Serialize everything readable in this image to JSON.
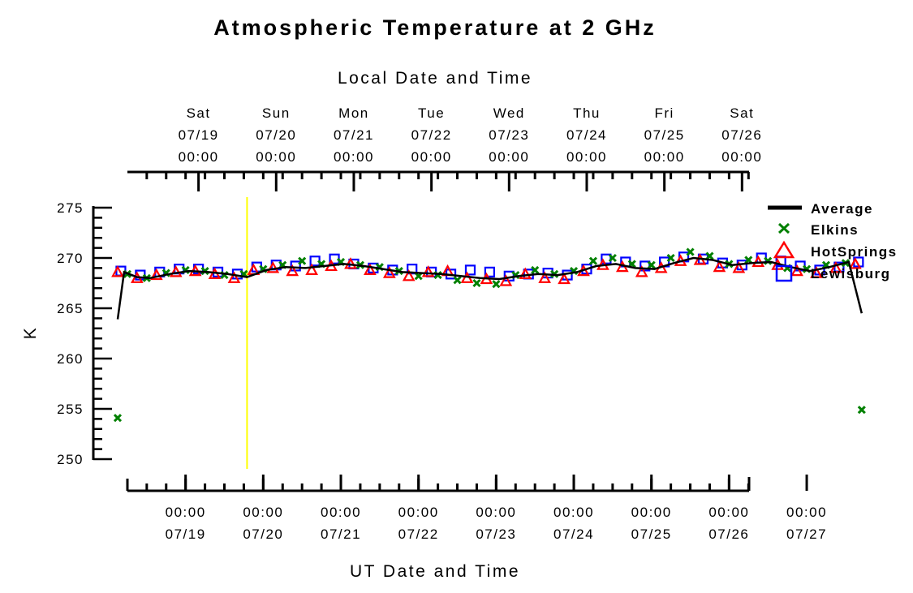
{
  "chart_data": {
    "type": "scatter",
    "title": "Atmospheric Temperature at 2 GHz",
    "ylabel": "K",
    "xlabel_bottom": "UT Date and Time",
    "xlabel_top": "Local Date and Time",
    "ylim": [
      250,
      275
    ],
    "y_ticks": [
      "250",
      "255",
      "260",
      "265",
      "270",
      "275"
    ],
    "xlim": [
      "2025-07-18T00:00",
      "2025-07-27T04:00"
    ],
    "bottom_ticks": [
      {
        "time": "00:00",
        "date": "07/19"
      },
      {
        "time": "00:00",
        "date": "07/20"
      },
      {
        "time": "00:00",
        "date": "07/21"
      },
      {
        "time": "00:00",
        "date": "07/22"
      },
      {
        "time": "00:00",
        "date": "07/23"
      },
      {
        "time": "00:00",
        "date": "07/24"
      },
      {
        "time": "00:00",
        "date": "07/25"
      },
      {
        "time": "00:00",
        "date": "07/26"
      },
      {
        "time": "00:00",
        "date": "07/27"
      }
    ],
    "top_ticks": [
      {
        "day": "Sat",
        "date": "07/19",
        "time": "00:00"
      },
      {
        "day": "Sun",
        "date": "07/20",
        "time": "00:00"
      },
      {
        "day": "Mon",
        "date": "07/21",
        "time": "00:00"
      },
      {
        "day": "Tue",
        "date": "07/22",
        "time": "00:00"
      },
      {
        "day": "Wed",
        "date": "07/23",
        "time": "00:00"
      },
      {
        "day": "Thu",
        "date": "07/24",
        "time": "00:00"
      },
      {
        "day": "Fri",
        "date": "07/25",
        "time": "00:00"
      },
      {
        "day": "Sat",
        "date": "07/26",
        "time": "00:00"
      }
    ],
    "marker_line": {
      "time": "2025-07-19T19:00",
      "color": "#ffff00"
    },
    "series": [
      {
        "name": "Average",
        "style": "line",
        "color": "#000000",
        "points": [
          [
            "2025-07-18T03:00",
            263.9
          ],
          [
            "2025-07-18T05:00",
            268.6
          ],
          [
            "2025-07-18T09:00",
            268.1
          ],
          [
            "2025-07-18T13:00",
            268.0
          ],
          [
            "2025-07-18T19:00",
            268.4
          ],
          [
            "2025-07-19T01:00",
            268.7
          ],
          [
            "2025-07-19T07:00",
            268.6
          ],
          [
            "2025-07-19T13:00",
            268.4
          ],
          [
            "2025-07-19T19:00",
            268.1
          ],
          [
            "2025-07-20T01:00",
            268.8
          ],
          [
            "2025-07-20T07:00",
            269.1
          ],
          [
            "2025-07-20T13:00",
            269.0
          ],
          [
            "2025-07-20T19:00",
            269.2
          ],
          [
            "2025-07-21T01:00",
            269.4
          ],
          [
            "2025-07-21T07:00",
            269.2
          ],
          [
            "2025-07-21T13:00",
            268.9
          ],
          [
            "2025-07-21T19:00",
            268.6
          ],
          [
            "2025-07-22T01:00",
            268.5
          ],
          [
            "2025-07-22T07:00",
            268.4
          ],
          [
            "2025-07-22T13:00",
            268.2
          ],
          [
            "2025-07-22T19:00",
            268.0
          ],
          [
            "2025-07-23T01:00",
            267.9
          ],
          [
            "2025-07-23T07:00",
            268.2
          ],
          [
            "2025-07-23T13:00",
            268.4
          ],
          [
            "2025-07-23T19:00",
            268.3
          ],
          [
            "2025-07-24T01:00",
            268.6
          ],
          [
            "2025-07-24T07:00",
            269.2
          ],
          [
            "2025-07-24T13:00",
            269.4
          ],
          [
            "2025-07-24T19:00",
            269.0
          ],
          [
            "2025-07-25T01:00",
            268.9
          ],
          [
            "2025-07-25T07:00",
            269.5
          ],
          [
            "2025-07-25T13:00",
            270.0
          ],
          [
            "2025-07-25T19:00",
            269.8
          ],
          [
            "2025-07-26T01:00",
            269.3
          ],
          [
            "2025-07-26T07:00",
            269.5
          ],
          [
            "2025-07-26T13:00",
            269.6
          ],
          [
            "2025-07-26T19:00",
            269.1
          ],
          [
            "2025-07-27T01:00",
            268.7
          ],
          [
            "2025-07-27T07:00",
            269.1
          ],
          [
            "2025-07-27T13:00",
            269.6
          ],
          [
            "2025-07-27T17:00",
            264.5
          ]
        ]
      },
      {
        "name": "Elkins",
        "style": "x",
        "color": "#008000",
        "points": [
          [
            "2025-07-18T03:00",
            254.1
          ],
          [
            "2025-07-18T06:00",
            268.4
          ],
          [
            "2025-07-18T12:00",
            268.0
          ],
          [
            "2025-07-18T18:00",
            268.5
          ],
          [
            "2025-07-19T00:00",
            268.8
          ],
          [
            "2025-07-19T06:00",
            268.7
          ],
          [
            "2025-07-19T12:00",
            268.3
          ],
          [
            "2025-07-19T18:00",
            268.4
          ],
          [
            "2025-07-20T00:00",
            268.9
          ],
          [
            "2025-07-20T06:00",
            269.3
          ],
          [
            "2025-07-20T12:00",
            269.7
          ],
          [
            "2025-07-20T18:00",
            269.4
          ],
          [
            "2025-07-21T00:00",
            269.6
          ],
          [
            "2025-07-21T06:00",
            269.3
          ],
          [
            "2025-07-21T12:00",
            269.1
          ],
          [
            "2025-07-21T18:00",
            268.7
          ],
          [
            "2025-07-22T00:00",
            268.2
          ],
          [
            "2025-07-22T06:00",
            268.3
          ],
          [
            "2025-07-22T12:00",
            267.8
          ],
          [
            "2025-07-22T18:00",
            267.5
          ],
          [
            "2025-07-23T00:00",
            267.4
          ],
          [
            "2025-07-23T06:00",
            268.3
          ],
          [
            "2025-07-23T12:00",
            268.8
          ],
          [
            "2025-07-23T18:00",
            268.4
          ],
          [
            "2025-07-24T00:00",
            268.7
          ],
          [
            "2025-07-24T06:00",
            269.7
          ],
          [
            "2025-07-24T12:00",
            270.0
          ],
          [
            "2025-07-24T18:00",
            269.4
          ],
          [
            "2025-07-25T00:00",
            269.3
          ],
          [
            "2025-07-25T06:00",
            270.0
          ],
          [
            "2025-07-25T12:00",
            270.6
          ],
          [
            "2025-07-25T18:00",
            270.2
          ],
          [
            "2025-07-26T00:00",
            269.4
          ],
          [
            "2025-07-26T06:00",
            269.8
          ],
          [
            "2025-07-26T12:00",
            269.7
          ],
          [
            "2025-07-26T18:00",
            269.0
          ],
          [
            "2025-07-27T00:00",
            268.9
          ],
          [
            "2025-07-27T06:00",
            269.3
          ],
          [
            "2025-07-27T12:00",
            269.5
          ],
          [
            "2025-07-27T17:00",
            254.9
          ]
        ]
      },
      {
        "name": "HotSprings",
        "style": "triangle",
        "color": "#ff0000",
        "points": [
          [
            "2025-07-18T03:00",
            268.6
          ],
          [
            "2025-07-18T09:00",
            268.0
          ],
          [
            "2025-07-18T15:00",
            268.3
          ],
          [
            "2025-07-18T21:00",
            268.6
          ],
          [
            "2025-07-19T03:00",
            268.7
          ],
          [
            "2025-07-19T09:00",
            268.4
          ],
          [
            "2025-07-19T15:00",
            268.0
          ],
          [
            "2025-07-19T21:00",
            268.8
          ],
          [
            "2025-07-20T03:00",
            269.0
          ],
          [
            "2025-07-20T09:00",
            268.7
          ],
          [
            "2025-07-20T15:00",
            268.8
          ],
          [
            "2025-07-20T21:00",
            269.2
          ],
          [
            "2025-07-21T03:00",
            269.4
          ],
          [
            "2025-07-21T09:00",
            268.8
          ],
          [
            "2025-07-21T15:00",
            268.5
          ],
          [
            "2025-07-21T21:00",
            268.2
          ],
          [
            "2025-07-22T03:00",
            268.6
          ],
          [
            "2025-07-22T09:00",
            268.7
          ],
          [
            "2025-07-22T15:00",
            268.0
          ],
          [
            "2025-07-22T21:00",
            267.9
          ],
          [
            "2025-07-23T03:00",
            267.7
          ],
          [
            "2025-07-23T09:00",
            268.4
          ],
          [
            "2025-07-23T15:00",
            268.0
          ],
          [
            "2025-07-23T21:00",
            267.9
          ],
          [
            "2025-07-24T03:00",
            268.7
          ],
          [
            "2025-07-24T09:00",
            269.3
          ],
          [
            "2025-07-24T15:00",
            269.1
          ],
          [
            "2025-07-24T21:00",
            268.6
          ],
          [
            "2025-07-25T03:00",
            269.0
          ],
          [
            "2025-07-25T09:00",
            269.7
          ],
          [
            "2025-07-25T15:00",
            269.8
          ],
          [
            "2025-07-25T21:00",
            269.1
          ],
          [
            "2025-07-26T03:00",
            269.0
          ],
          [
            "2025-07-26T09:00",
            269.6
          ],
          [
            "2025-07-26T15:00",
            269.3
          ],
          [
            "2025-07-26T21:00",
            268.7
          ],
          [
            "2025-07-27T03:00",
            268.5
          ],
          [
            "2025-07-27T09:00",
            269.0
          ],
          [
            "2025-07-27T15:00",
            269.4
          ]
        ]
      },
      {
        "name": "Lewisburg",
        "style": "square",
        "color": "#0000ff",
        "points": [
          [
            "2025-07-18T04:00",
            268.7
          ],
          [
            "2025-07-18T10:00",
            268.3
          ],
          [
            "2025-07-18T16:00",
            268.6
          ],
          [
            "2025-07-18T22:00",
            268.9
          ],
          [
            "2025-07-19T04:00",
            268.9
          ],
          [
            "2025-07-19T10:00",
            268.6
          ],
          [
            "2025-07-19T16:00",
            268.4
          ],
          [
            "2025-07-19T22:00",
            269.1
          ],
          [
            "2025-07-20T04:00",
            269.3
          ],
          [
            "2025-07-20T10:00",
            269.2
          ],
          [
            "2025-07-20T16:00",
            269.7
          ],
          [
            "2025-07-20T22:00",
            269.9
          ],
          [
            "2025-07-21T04:00",
            269.4
          ],
          [
            "2025-07-21T10:00",
            269.0
          ],
          [
            "2025-07-21T16:00",
            268.8
          ],
          [
            "2025-07-21T22:00",
            268.9
          ],
          [
            "2025-07-22T04:00",
            268.6
          ],
          [
            "2025-07-22T10:00",
            268.4
          ],
          [
            "2025-07-22T16:00",
            268.8
          ],
          [
            "2025-07-22T22:00",
            268.6
          ],
          [
            "2025-07-23T04:00",
            268.2
          ],
          [
            "2025-07-23T10:00",
            268.4
          ],
          [
            "2025-07-23T16:00",
            268.5
          ],
          [
            "2025-07-23T22:00",
            268.3
          ],
          [
            "2025-07-24T04:00",
            268.9
          ],
          [
            "2025-07-24T10:00",
            269.9
          ],
          [
            "2025-07-24T16:00",
            269.6
          ],
          [
            "2025-07-24T22:00",
            269.2
          ],
          [
            "2025-07-25T04:00",
            269.6
          ],
          [
            "2025-07-25T10:00",
            270.1
          ],
          [
            "2025-07-25T16:00",
            269.9
          ],
          [
            "2025-07-25T22:00",
            269.5
          ],
          [
            "2025-07-26T04:00",
            269.3
          ],
          [
            "2025-07-26T10:00",
            270.0
          ],
          [
            "2025-07-26T16:00",
            269.7
          ],
          [
            "2025-07-26T22:00",
            269.2
          ],
          [
            "2025-07-27T04:00",
            268.8
          ],
          [
            "2025-07-27T10:00",
            269.1
          ],
          [
            "2025-07-27T16:00",
            269.6
          ]
        ]
      }
    ],
    "legend": [
      "Average",
      "Elkins",
      "HotSprings",
      "Lewisburg"
    ]
  }
}
